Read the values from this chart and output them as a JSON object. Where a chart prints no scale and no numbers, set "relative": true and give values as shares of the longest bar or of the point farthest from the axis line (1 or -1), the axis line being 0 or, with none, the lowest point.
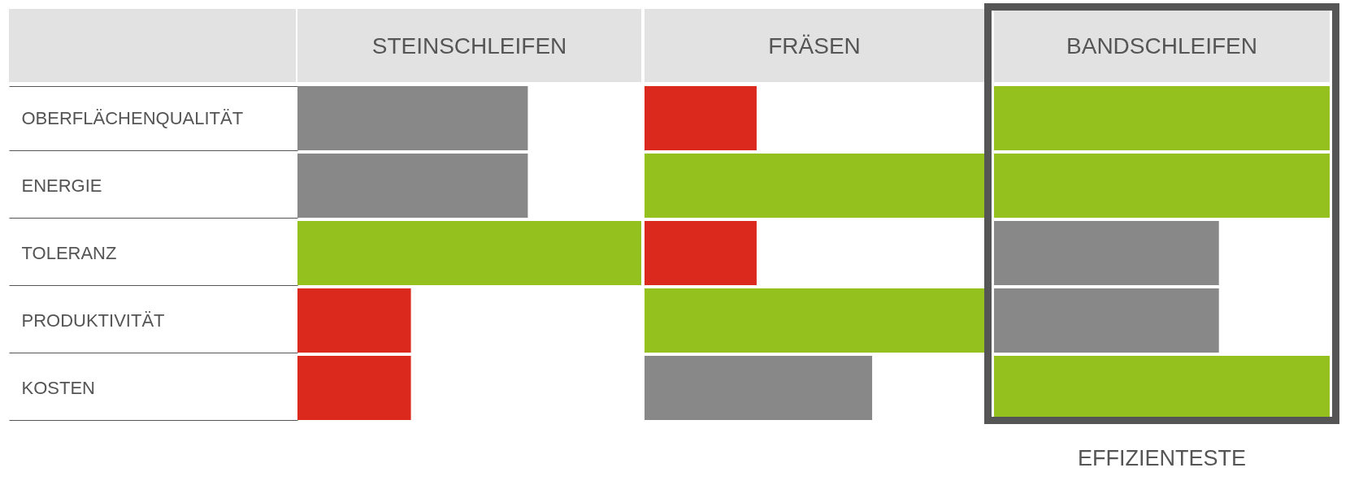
{
  "chart_data": [
    {
      "type": "bar",
      "orientation": "horizontal",
      "relative": true,
      "title": "STEINSCHLEIFEN",
      "categories": [
        "OBERFLÄCHENQUALITÄT",
        "ENERGIE",
        "TOLERANZ",
        "PRODUKTIVITÄT",
        "KOSTEN"
      ],
      "values": [
        0.67,
        0.67,
        1,
        0.33,
        0.33
      ],
      "colors": [
        "#888888",
        "#888888",
        "#95c11f",
        "#dc291e",
        "#dc291e"
      ],
      "tick_labels": "y"
    },
    {
      "type": "bar",
      "orientation": "horizontal",
      "relative": true,
      "title": "FRÄSEN",
      "categories": [
        null,
        null,
        null,
        null,
        null
      ],
      "values": [
        0.33,
        1,
        0.33,
        1,
        0.67
      ],
      "colors": [
        "#dc291e",
        "#95c11f",
        "#dc291e",
        "#95c11f",
        "#888888"
      ],
      "tick_labels": false
    },
    {
      "type": "bar",
      "orientation": "horizontal",
      "relative": true,
      "title": "BANDSCHLEIFEN",
      "categories": [
        null,
        null,
        null,
        null,
        null
      ],
      "values": [
        1,
        1,
        0.67,
        0.67,
        1
      ],
      "colors": [
        "#95c11f",
        "#95c11f",
        "#888888",
        "#888888",
        "#95c11f"
      ],
      "tick_labels": false,
      "annotations": [
        "EFFIZIENTESTE"
      ]
    }
  ]
}
